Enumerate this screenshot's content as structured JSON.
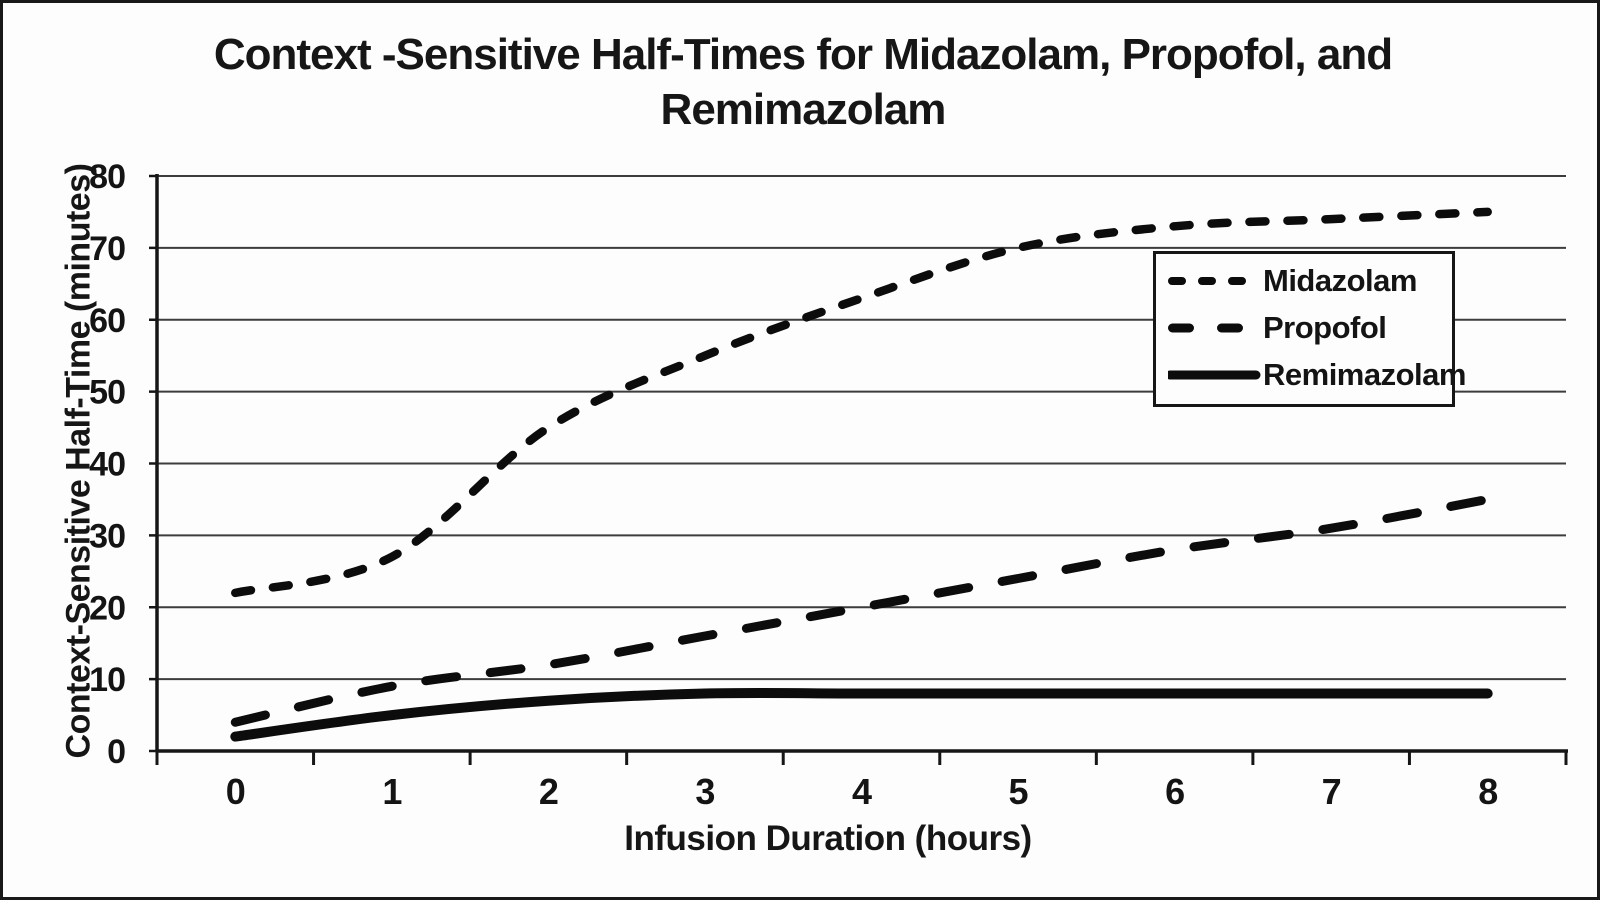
{
  "title": {
    "line1": "Context -Sensitive Half-Times for Midazolam, Propofol, and",
    "line2": "Remimazolam"
  },
  "chart_data": {
    "type": "line",
    "title": "Context -Sensitive Half-Times for Midazolam, Propofol, and Remimazolam",
    "xlabel": "Infusion Duration (hours)",
    "ylabel": "Context-Sensitive Half-Time (minutes)",
    "x": [
      0,
      1,
      2,
      3,
      4,
      5,
      6,
      7,
      8
    ],
    "x_tick_labels": [
      "0",
      "1",
      "2",
      "3",
      "4",
      "5",
      "6",
      "7",
      "8"
    ],
    "y_ticks": [
      0,
      10,
      20,
      30,
      40,
      50,
      60,
      70,
      80
    ],
    "ylim": [
      0,
      80
    ],
    "grid": "horizontal",
    "legend_position": "inside-upper-right",
    "ink_color": "#0c0c0c",
    "gridline_color": "#3d3d3d",
    "series": [
      {
        "name": "Midazolam",
        "line_style": "short-dash",
        "values": [
          22,
          27,
          45,
          55,
          63,
          70,
          73,
          74,
          75
        ]
      },
      {
        "name": "Propofol",
        "line_style": "long-dash",
        "values": [
          4,
          9,
          12,
          16,
          20,
          24,
          28,
          31,
          35
        ]
      },
      {
        "name": "Remimazolam",
        "line_style": "solid",
        "values": [
          2,
          5,
          7,
          8,
          8,
          8,
          8,
          8,
          8
        ]
      }
    ]
  }
}
